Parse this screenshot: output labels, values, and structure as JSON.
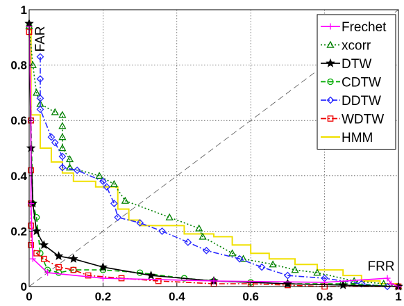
{
  "chart_data": {
    "type": "line",
    "xlabel": "FRR",
    "ylabel": "FAR",
    "xlim": [
      0,
      1
    ],
    "ylim": [
      0,
      1
    ],
    "grid": true,
    "legend_position": "top-right",
    "x_ticks": [
      "0",
      "0.2",
      "0.4",
      "0.6",
      "0.8",
      "1"
    ],
    "y_ticks": [
      "0",
      "0.2",
      "0.4",
      "0.6",
      "0.8",
      "1"
    ],
    "diagonal": {
      "style": "dashed",
      "color": "#555555"
    },
    "series": [
      {
        "name": "Frechet",
        "color": "#ff00ff",
        "marker": "plus",
        "dash": "solid",
        "points": [
          [
            0,
            0.94
          ],
          [
            0.005,
            0.6
          ],
          [
            0.005,
            0.3
          ],
          [
            0.01,
            0.1
          ],
          [
            0.05,
            0.05
          ],
          [
            0.2,
            0.03
          ],
          [
            0.5,
            0.02
          ],
          [
            0.8,
            0.015
          ],
          [
            0.97,
            0.03
          ],
          [
            0.98,
            0.01
          ],
          [
            1.0,
            0.0
          ]
        ]
      },
      {
        "name": "xcorr",
        "color": "#008000",
        "marker": "triangle",
        "dash": "dotted",
        "points": [
          [
            0,
            0.94
          ],
          [
            0.01,
            0.8
          ],
          [
            0.02,
            0.7
          ],
          [
            0.03,
            0.66
          ],
          [
            0.07,
            0.63
          ],
          [
            0.09,
            0.62
          ],
          [
            0.09,
            0.58
          ],
          [
            0.09,
            0.54
          ],
          [
            0.09,
            0.5
          ],
          [
            0.11,
            0.46
          ],
          [
            0.11,
            0.43
          ],
          [
            0.19,
            0.4
          ],
          [
            0.23,
            0.37
          ],
          [
            0.26,
            0.31
          ],
          [
            0.38,
            0.25
          ],
          [
            0.46,
            0.21
          ],
          [
            0.47,
            0.18
          ],
          [
            0.55,
            0.12
          ],
          [
            0.58,
            0.1
          ],
          [
            0.66,
            0.08
          ],
          [
            0.72,
            0.06
          ],
          [
            0.78,
            0.05
          ],
          [
            0.88,
            0.02
          ],
          [
            0.96,
            0.01
          ],
          [
            1.0,
            0.0
          ]
        ]
      },
      {
        "name": "DTW",
        "color": "#000000",
        "marker": "star",
        "dash": "solid",
        "points": [
          [
            0,
            0.95
          ],
          [
            0.005,
            0.5
          ],
          [
            0.01,
            0.3
          ],
          [
            0.02,
            0.2
          ],
          [
            0.04,
            0.15
          ],
          [
            0.08,
            0.11
          ],
          [
            0.12,
            0.1
          ],
          [
            0.2,
            0.07
          ],
          [
            0.33,
            0.04
          ],
          [
            0.5,
            0.02
          ],
          [
            0.7,
            0.01
          ],
          [
            0.85,
            0.005
          ],
          [
            1.0,
            0.0
          ]
        ]
      },
      {
        "name": "CDTW",
        "color": "#00aa00",
        "marker": "circle",
        "dash": "dashed",
        "points": [
          [
            0,
            0.94
          ],
          [
            0.005,
            0.6
          ],
          [
            0.01,
            0.3
          ],
          [
            0.02,
            0.25
          ],
          [
            0.03,
            0.12
          ],
          [
            0.05,
            0.06
          ],
          [
            0.08,
            0.05
          ],
          [
            0.12,
            0.06
          ],
          [
            0.2,
            0.06
          ],
          [
            0.3,
            0.05
          ],
          [
            0.42,
            0.03
          ],
          [
            0.5,
            0.02
          ],
          [
            0.6,
            0.015
          ],
          [
            0.7,
            0.01
          ],
          [
            0.85,
            0.01
          ],
          [
            1.0,
            0.0
          ]
        ]
      },
      {
        "name": "DDTW",
        "color": "#2828ff",
        "marker": "diamond",
        "dash": "dashdot",
        "points": [
          [
            0.03,
            0.83
          ],
          [
            0.03,
            0.75
          ],
          [
            0.03,
            0.68
          ],
          [
            0.03,
            0.64
          ],
          [
            0.06,
            0.54
          ],
          [
            0.07,
            0.52
          ],
          [
            0.09,
            0.47
          ],
          [
            0.09,
            0.43
          ],
          [
            0.13,
            0.42
          ],
          [
            0.2,
            0.38
          ],
          [
            0.21,
            0.36
          ],
          [
            0.23,
            0.3
          ],
          [
            0.24,
            0.25
          ],
          [
            0.3,
            0.23
          ],
          [
            0.36,
            0.2
          ],
          [
            0.43,
            0.16
          ],
          [
            0.48,
            0.13
          ],
          [
            0.57,
            0.1
          ],
          [
            0.63,
            0.07
          ],
          [
            0.7,
            0.04
          ],
          [
            0.8,
            0.03
          ],
          [
            0.9,
            0.01
          ],
          [
            0.97,
            0.0
          ]
        ]
      },
      {
        "name": "WDTW",
        "color": "#ee0000",
        "marker": "square",
        "dash": "dashdot",
        "points": [
          [
            0,
            0.92
          ],
          [
            0.005,
            0.6
          ],
          [
            0.005,
            0.42
          ],
          [
            0.005,
            0.3
          ],
          [
            0.005,
            0.22
          ],
          [
            0.005,
            0.15
          ],
          [
            0.02,
            0.12
          ],
          [
            0.04,
            0.1
          ],
          [
            0.08,
            0.07
          ],
          [
            0.12,
            0.06
          ],
          [
            0.16,
            0.04
          ],
          [
            0.25,
            0.03
          ],
          [
            0.35,
            0.02
          ],
          [
            0.5,
            0.01
          ],
          [
            0.6,
            0.01
          ],
          [
            0.7,
            0.005
          ],
          [
            0.8,
            0.0
          ],
          [
            1.0,
            0.0
          ]
        ]
      },
      {
        "name": "HMM",
        "color": "#f0e000",
        "marker": "none",
        "dash": "solid",
        "step": true,
        "points": [
          [
            0,
            0.94
          ],
          [
            0.005,
            0.94
          ],
          [
            0.005,
            0.62
          ],
          [
            0.03,
            0.62
          ],
          [
            0.03,
            0.5
          ],
          [
            0.06,
            0.5
          ],
          [
            0.06,
            0.45
          ],
          [
            0.09,
            0.45
          ],
          [
            0.09,
            0.41
          ],
          [
            0.12,
            0.41
          ],
          [
            0.12,
            0.38
          ],
          [
            0.18,
            0.38
          ],
          [
            0.18,
            0.36
          ],
          [
            0.24,
            0.36
          ],
          [
            0.24,
            0.28
          ],
          [
            0.27,
            0.28
          ],
          [
            0.27,
            0.24
          ],
          [
            0.3,
            0.24
          ],
          [
            0.3,
            0.22
          ],
          [
            0.42,
            0.22
          ],
          [
            0.42,
            0.19
          ],
          [
            0.5,
            0.19
          ],
          [
            0.5,
            0.18
          ],
          [
            0.55,
            0.18
          ],
          [
            0.55,
            0.15
          ],
          [
            0.6,
            0.15
          ],
          [
            0.6,
            0.12
          ],
          [
            0.65,
            0.12
          ],
          [
            0.65,
            0.1
          ],
          [
            0.72,
            0.1
          ],
          [
            0.72,
            0.08
          ],
          [
            0.78,
            0.08
          ],
          [
            0.78,
            0.06
          ],
          [
            0.85,
            0.06
          ],
          [
            0.85,
            0.04
          ],
          [
            0.9,
            0.04
          ],
          [
            0.9,
            0.02
          ],
          [
            0.95,
            0.02
          ],
          [
            0.95,
            0.01
          ],
          [
            1.0,
            0.01
          ]
        ]
      }
    ]
  }
}
